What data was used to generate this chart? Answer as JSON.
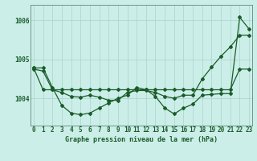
{
  "title": "Graphe pression niveau de la mer (hPa)",
  "bg_color": "#cceee8",
  "grid_color_major": "#a8d4cc",
  "grid_color_minor": "#b8dcd6",
  "line_color": "#1a5c2a",
  "ylim": [
    1003.3,
    1006.4
  ],
  "yticks": [
    1004,
    1005,
    1006
  ],
  "xlim": [
    -0.3,
    23.3
  ],
  "line1": [
    1004.78,
    1004.78,
    1004.28,
    1003.82,
    1003.62,
    1003.58,
    1003.62,
    1003.75,
    1003.88,
    1004.0,
    1004.08,
    1004.28,
    1004.22,
    1004.05,
    1003.75,
    1003.6,
    1003.75,
    1003.85,
    1004.08,
    1004.1,
    1004.12,
    1004.12,
    1006.08,
    1005.78
  ],
  "line2": [
    1004.75,
    1004.7,
    1004.22,
    1004.15,
    1004.05,
    1004.03,
    1004.08,
    1004.03,
    1003.95,
    1003.95,
    1004.15,
    1004.2,
    1004.2,
    1004.15,
    1004.05,
    1004.0,
    1004.08,
    1004.08,
    1004.5,
    1004.8,
    1005.08,
    1005.32,
    1005.62,
    1005.62
  ],
  "line3": [
    1004.78,
    1004.22,
    1004.22,
    1004.22,
    1004.22,
    1004.22,
    1004.22,
    1004.22,
    1004.22,
    1004.22,
    1004.22,
    1004.22,
    1004.22,
    1004.22,
    1004.22,
    1004.22,
    1004.22,
    1004.22,
    1004.22,
    1004.22,
    1004.22,
    1004.22,
    1004.75,
    1004.75
  ],
  "tick_fontsize": 5.5,
  "label_fontsize": 6.0
}
